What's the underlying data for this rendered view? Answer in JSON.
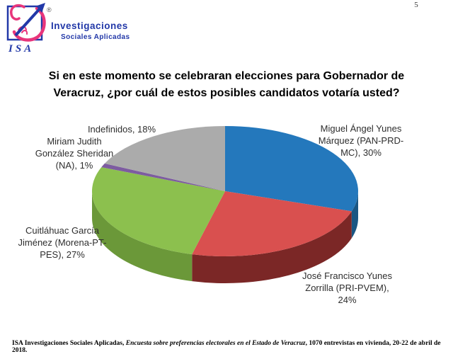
{
  "page_number": "5",
  "logo": {
    "acronym": "ISA",
    "registered_mark": "®",
    "brand_line1": "Investigaciones",
    "brand_line2": "Sociales Aplicadas",
    "brand_color_blue": "#2238A8",
    "brand_color_pink": "#E8357B"
  },
  "title": "Si en este momento se celebraran elecciones para Gobernador de\nVeracruz, ¿por cuál de estos posibles candidatos votaría usted?",
  "chart_data": {
    "type": "pie",
    "style": "3d",
    "title": "Si en este momento se celebraran elecciones para Gobernador de Veracruz, ¿por cuál de estos posibles candidatos votaría usted?",
    "unit": "%",
    "start_angle_deg": 0,
    "direction": "clockwise",
    "legend": "none",
    "data_labels": "outside",
    "slices": [
      {
        "key": "miguel-yunes",
        "candidate": "Miguel Ángel Yunes Márquez",
        "party": "PAN-PRD-MC",
        "value": 30,
        "color": "#2478BC",
        "side_color": "#1A5683",
        "label_text": "Miguel Ángel Yunes\nMárquez (PAN-PRD-\nMC), 30%"
      },
      {
        "key": "jose-yunes",
        "candidate": "José Francisco Yunes Zorrilla",
        "party": "PRI-PVEM",
        "value": 24,
        "color": "#D9504F",
        "side_color": "#7B2726",
        "label_text": "José Francisco Yunes\nZorrilla (PRI-PVEM),\n24%"
      },
      {
        "key": "cuitlahuac-garcia",
        "candidate": "Cuitláhuac García Jiménez",
        "party": "Morena-PT-PES",
        "value": 27,
        "color": "#8CC04E",
        "side_color": "#6B9839",
        "label_text": "Cuitláhuac García\nJiménez (Morena-PT-\nPES), 27%"
      },
      {
        "key": "miriam-gonzalez",
        "candidate": "Miriam Judith González Sheridan",
        "party": "NA",
        "value": 1,
        "color": "#7D5CA0",
        "side_color": "#5B4375",
        "label_text": "Miriam Judith\nGonzález Sheridan\n(NA), 1%"
      },
      {
        "key": "indefinidos",
        "candidate": "Indefinidos",
        "party": "",
        "value": 18,
        "color": "#ABABAB",
        "side_color": "#8A8A8A",
        "label_text": "Indefinidos, 18%"
      }
    ]
  },
  "footer": {
    "part1": "ISA Investigaciones Sociales Aplicadas, ",
    "part2_italic": "Encuesta sobre preferencias electorales en el Estado de Veracruz",
    "part3": ", 1070 entrevistas en vivienda, 20-22 de abril de 2018."
  }
}
